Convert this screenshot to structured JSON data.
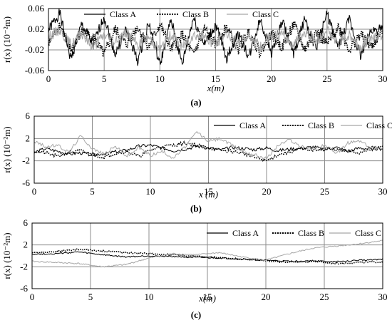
{
  "chart_data": [
    {
      "type": "line",
      "caption": "(a)",
      "xlabel": "x(m)",
      "ylabel": "r(x) (10⁻²m)",
      "xlim": [
        0,
        30
      ],
      "ylim": [
        -0.06,
        0.06
      ],
      "xticks": [
        "0",
        "5",
        "10",
        "15",
        "20",
        "25",
        "30"
      ],
      "yticks": [
        "0.06",
        "0.02",
        "-0.02",
        "-0.06"
      ],
      "legend": "top",
      "grid": true,
      "series": [
        {
          "name": "Class A",
          "style": "solid",
          "color": "#000000",
          "x": [
            0,
            1,
            2,
            3,
            4,
            5,
            6,
            7,
            8,
            9,
            10,
            11,
            12,
            13,
            14,
            15,
            16,
            17,
            18,
            19,
            20,
            21,
            22,
            23,
            24,
            25,
            26,
            27,
            28,
            29,
            30
          ],
          "y": [
            0.018,
            0.052,
            -0.038,
            0.03,
            -0.012,
            0.045,
            -0.028,
            0.02,
            -0.042,
            0.033,
            -0.05,
            0.038,
            -0.048,
            0.042,
            -0.01,
            0.028,
            -0.036,
            0.012,
            -0.034,
            0.04,
            -0.025,
            0.035,
            -0.03,
            0.042,
            -0.018,
            0.05,
            -0.015,
            0.038,
            -0.032,
            0.02,
            0.018
          ]
        },
        {
          "name": "Class B",
          "style": "dotted",
          "color": "#000000",
          "x": [
            0,
            1,
            2,
            3,
            4,
            5,
            6,
            7,
            8,
            9,
            10,
            11,
            12,
            13,
            14,
            15,
            16,
            17,
            18,
            19,
            20,
            21,
            22,
            23,
            24,
            25,
            26,
            27,
            28,
            29,
            30
          ],
          "y": [
            -0.01,
            0.03,
            -0.02,
            0.015,
            0.005,
            -0.03,
            0.02,
            -0.01,
            0.025,
            -0.015,
            0.03,
            -0.02,
            0.01,
            -0.03,
            0.02,
            -0.01,
            0.025,
            -0.02,
            0.015,
            -0.025,
            0.01,
            -0.015,
            0.03,
            -0.02,
            0.015,
            -0.01,
            0.025,
            -0.02,
            0.01,
            -0.015,
            0.02
          ]
        },
        {
          "name": "Class C",
          "style": "solid",
          "color": "#a6a6a6",
          "x": [
            0,
            1,
            2,
            3,
            4,
            5,
            6,
            7,
            8,
            9,
            10,
            11,
            12,
            13,
            14,
            15,
            16,
            17,
            18,
            19,
            20,
            21,
            22,
            23,
            24,
            25,
            26,
            27,
            28,
            29,
            30
          ],
          "y": [
            0.005,
            0.02,
            -0.01,
            0.01,
            -0.015,
            0.01,
            -0.005,
            0.015,
            -0.01,
            0.005,
            -0.02,
            0.01,
            -0.015,
            0.01,
            0.005,
            -0.01,
            0.015,
            -0.01,
            0.01,
            -0.015,
            0.005,
            0.01,
            -0.01,
            0.015,
            -0.005,
            0.02,
            -0.01,
            0.01,
            -0.015,
            0.005,
            0.01
          ]
        }
      ]
    },
    {
      "type": "line",
      "caption": "(b)",
      "xlabel": "x (m)",
      "ylabel": "r(x) (10⁻²m)",
      "xlim": [
        0,
        30
      ],
      "ylim": [
        -6,
        6
      ],
      "xticks": [
        "0",
        "5",
        "10",
        "15",
        "20",
        "25",
        "30"
      ],
      "yticks": [
        "6",
        "2",
        "-2",
        "-6"
      ],
      "legend": "top-right",
      "grid": true,
      "series": [
        {
          "name": "Class A",
          "style": "solid",
          "color": "#000000",
          "x": [
            0,
            1,
            2,
            3,
            4,
            5,
            6,
            7,
            8,
            9,
            10,
            11,
            12,
            13,
            14,
            15,
            16,
            17,
            18,
            19,
            20,
            21,
            22,
            23,
            24,
            25,
            26,
            27,
            28,
            29,
            30
          ],
          "y": [
            -0.5,
            0.2,
            -0.3,
            -0.8,
            -0.6,
            -0.9,
            -0.7,
            -0.4,
            -0.1,
            0.6,
            0.8,
            0.3,
            -0.2,
            0.1,
            0.6,
            0.3,
            -0.1,
            0.4,
            0.2,
            0.0,
            0.3,
            -0.2,
            0.1,
            0.2,
            0.5,
            0.0,
            0.4,
            -0.3,
            0.3,
            0.1,
            0.2
          ]
        },
        {
          "name": "Class B",
          "style": "dotted",
          "color": "#000000",
          "x": [
            0,
            1,
            2,
            3,
            4,
            5,
            6,
            7,
            8,
            9,
            10,
            11,
            12,
            13,
            14,
            15,
            16,
            17,
            18,
            19,
            20,
            21,
            22,
            23,
            24,
            25,
            26,
            27,
            28,
            29,
            30
          ],
          "y": [
            -0.3,
            -0.6,
            -1.2,
            -0.5,
            -0.2,
            -0.9,
            -1.4,
            -0.6,
            -0.3,
            -1.2,
            -0.1,
            0.6,
            0.8,
            1.2,
            0.8,
            0.4,
            -0.1,
            -0.3,
            -0.6,
            -1.4,
            -2.0,
            -0.9,
            -0.4,
            0.2,
            -0.1,
            0.3,
            0.0,
            -0.3,
            -0.6,
            0.3,
            0.5
          ]
        },
        {
          "name": "Class C",
          "style": "solid",
          "color": "#a6a6a6",
          "x": [
            0,
            1,
            2,
            3,
            4,
            5,
            6,
            7,
            8,
            9,
            10,
            11,
            12,
            13,
            14,
            15,
            16,
            17,
            18,
            19,
            20,
            21,
            22,
            23,
            24,
            25,
            26,
            27,
            28,
            29,
            30
          ],
          "y": [
            1.5,
            0.5,
            0.8,
            -0.5,
            2.5,
            0.2,
            -0.8,
            0.6,
            -1.2,
            0.4,
            -1.0,
            -0.3,
            -1.5,
            0.5,
            3.2,
            1.5,
            2.0,
            0.8,
            -0.3,
            -0.9,
            -1.6,
            0.8,
            1.8,
            0.5,
            0.2,
            0.9,
            -0.8,
            1.2,
            1.6,
            0.3,
            0.4
          ]
        }
      ]
    },
    {
      "type": "line",
      "caption": "(c)",
      "xlabel": "x(m)",
      "ylabel": "r(x) (10⁻²m)",
      "xlim": [
        0,
        30
      ],
      "ylim": [
        -6,
        6
      ],
      "xticks": [
        "0",
        "5",
        "10",
        "15",
        "20",
        "25",
        "30"
      ],
      "yticks": [
        "6",
        "2",
        "-2",
        "-6"
      ],
      "legend": "top-right",
      "grid": true,
      "series": [
        {
          "name": "Class A",
          "style": "solid",
          "color": "#000000",
          "x": [
            0,
            2,
            4,
            6,
            8,
            10,
            12,
            14,
            16,
            18,
            20,
            22,
            24,
            26,
            28,
            30
          ],
          "y": [
            0.3,
            0.4,
            0.7,
            0.2,
            -0.2,
            0.0,
            -0.1,
            -0.3,
            -0.4,
            -0.6,
            -0.8,
            -1.0,
            -0.9,
            -1.1,
            -0.8,
            -0.6
          ]
        },
        {
          "name": "Class B",
          "style": "dotted",
          "color": "#000000",
          "x": [
            0,
            2,
            4,
            6,
            8,
            10,
            12,
            14,
            16,
            18,
            20,
            22,
            24,
            26,
            28,
            30
          ],
          "y": [
            0.6,
            0.8,
            1.2,
            0.9,
            0.6,
            0.4,
            0.2,
            -0.1,
            -0.3,
            -0.6,
            -0.9,
            -1.2,
            -1.0,
            -1.4,
            -1.2,
            -1.1
          ]
        },
        {
          "name": "Class C",
          "style": "solid",
          "color": "#a6a6a6",
          "x": [
            0,
            2,
            4,
            6,
            8,
            10,
            12,
            14,
            16,
            18,
            20,
            22,
            24,
            26,
            28,
            30
          ],
          "y": [
            -1.0,
            -1.2,
            -1.4,
            -2.0,
            -1.6,
            -0.4,
            0.4,
            0.2,
            0.6,
            -0.2,
            -0.8,
            0.4,
            1.4,
            1.8,
            2.2,
            2.8
          ]
        }
      ]
    }
  ]
}
